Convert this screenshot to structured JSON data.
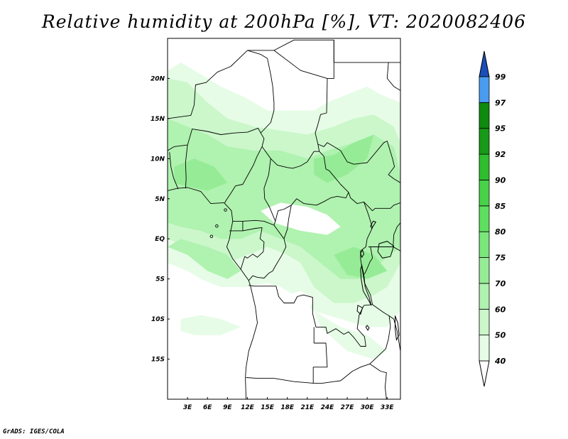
{
  "title": "Relative humidity at 200hPa [%], VT: 2020082406",
  "credit": "GrADS: IGES/COLA",
  "map": {
    "variable": "Relative humidity",
    "level": "200hPa",
    "units": "%",
    "valid_time": "2020082406",
    "lon_range": [
      0,
      35
    ],
    "lat_range": [
      -20,
      25
    ],
    "lat_ticks": [
      {
        "value": 20,
        "label": "20N"
      },
      {
        "value": 15,
        "label": "15N"
      },
      {
        "value": 10,
        "label": "10N"
      },
      {
        "value": 5,
        "label": "5N"
      },
      {
        "value": 0,
        "label": "EQ"
      },
      {
        "value": -5,
        "label": "5S"
      },
      {
        "value": -10,
        "label": "10S"
      },
      {
        "value": -15,
        "label": "15S"
      }
    ],
    "lon_ticks": [
      {
        "value": 3,
        "label": "3E"
      },
      {
        "value": 6,
        "label": "6E"
      },
      {
        "value": 9,
        "label": "9E"
      },
      {
        "value": 12,
        "label": "12E"
      },
      {
        "value": 15,
        "label": "15E"
      },
      {
        "value": 18,
        "label": "18E"
      },
      {
        "value": 21,
        "label": "21E"
      },
      {
        "value": 24,
        "label": "24E"
      },
      {
        "value": 27,
        "label": "27E"
      },
      {
        "value": 30,
        "label": "30E"
      },
      {
        "value": 33,
        "label": "33E"
      }
    ]
  },
  "colorbar": {
    "levels": [
      "40",
      "50",
      "60",
      "70",
      "75",
      "80",
      "85",
      "90",
      "92",
      "95",
      "97",
      "99"
    ],
    "colors": [
      "#ffffff",
      "#e6fce6",
      "#cbf7cb",
      "#b0f2b0",
      "#96ec96",
      "#7be67b",
      "#5fdf5f",
      "#48d248",
      "#2ebe2e",
      "#179a17",
      "#0e8a0e",
      "#4a9cf0",
      "#2668d8",
      "#1a4fb8"
    ]
  },
  "colors": {
    "light_green": "#e6fce6",
    "mid_green": "#cbf7cb",
    "green": "#b0f2b0",
    "deep_green": "#96ec96",
    "border": "#000000"
  }
}
